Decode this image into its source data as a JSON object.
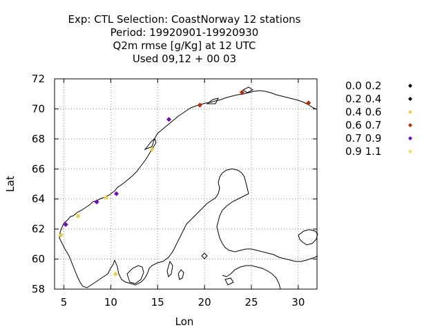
{
  "chart_data": {
    "type": "scatter",
    "title_lines": [
      "Exp: CTL   Selection: CoastNorway     12 stations",
      "Period: 19920901-19920930",
      "Q2m rmse [g/Kg] at  12 UTC",
      "Used  09,12  + 00 03"
    ],
    "xlabel": "Lon",
    "ylabel": "Lat",
    "xlim": [
      4,
      32
    ],
    "ylim": [
      58,
      72
    ],
    "xticks": [
      5,
      10,
      15,
      20,
      25,
      30
    ],
    "yticks": [
      58,
      60,
      62,
      64,
      66,
      68,
      70,
      72
    ],
    "grid": true,
    "legend_position": "right",
    "series": [
      {
        "name": "0.0 0.2",
        "color": "#000000",
        "points": []
      },
      {
        "name": "0.2 0.4",
        "color": "#000000",
        "points": []
      },
      {
        "name": "0.4 0.6",
        "color": "#f0d040",
        "points": [
          [
            4.7,
            61.6
          ],
          [
            6.5,
            62.85
          ],
          [
            9.5,
            64.1
          ],
          [
            14.4,
            67.3
          ],
          [
            10.5,
            59.0
          ]
        ]
      },
      {
        "name": "0.6 0.7",
        "color": "#cc2200",
        "points": [
          [
            19.5,
            70.25
          ],
          [
            24.0,
            71.1
          ],
          [
            31.1,
            70.4
          ]
        ]
      },
      {
        "name": "0.7 0.9",
        "color": "#7a00d0",
        "points": [
          [
            5.2,
            62.3
          ],
          [
            8.5,
            63.8
          ],
          [
            10.6,
            64.35
          ],
          [
            16.2,
            69.3
          ]
        ]
      },
      {
        "name": "0.9 1.1",
        "color": "#f0e050",
        "points": []
      }
    ]
  }
}
